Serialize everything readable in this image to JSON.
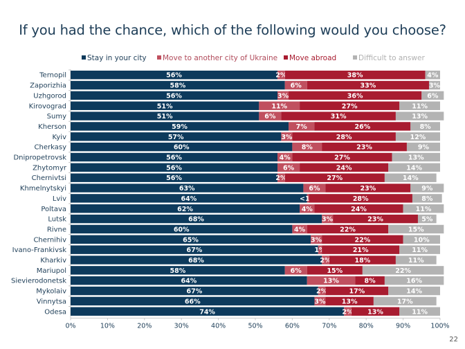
{
  "page_number": "22",
  "chart_data": {
    "type": "bar",
    "orientation": "horizontal",
    "stacked": true,
    "title": "If you had the chance, which of the following would you choose?",
    "xlabel": "",
    "ylabel": "",
    "xlim": [
      0,
      100
    ],
    "x_ticks": [
      "0%",
      "10%",
      "20%",
      "30%",
      "40%",
      "50%",
      "60%",
      "70%",
      "80%",
      "90%",
      "100%"
    ],
    "legend_position": "top",
    "categories": [
      "Ternopil",
      "Zaporizhia",
      "Uzhgorod",
      "Kirovograd",
      "Sumy",
      "Kherson",
      "Kyiv",
      "Cherkasy",
      "Dnipropetrovsk",
      "Zhytomyr",
      "Chernivtsi",
      "Khmelnytskyi",
      "Lviv",
      "Poltava",
      "Lutsk",
      "Rivne",
      "Chernihiv",
      "Ivano-Frankivsk",
      "Kharkiv",
      "Mariupol",
      "Sievierodonetsk",
      "Mykolaiv",
      "Vinnytsa",
      "Odesa"
    ],
    "series": [
      {
        "name": "Stay in your city",
        "color": "#0d3a5c",
        "legend_text_color": "#1d3d57",
        "values": [
          56,
          58,
          56,
          51,
          51,
          59,
          57,
          60,
          56,
          56,
          56,
          63,
          64,
          62,
          68,
          60,
          65,
          67,
          68,
          58,
          64,
          67,
          66,
          74
        ],
        "labels": [
          "56%",
          "58%",
          "56%",
          "51%",
          "51%",
          "59%",
          "57%",
          "60%",
          "56%",
          "56%",
          "56%",
          "63%",
          "64%",
          "62%",
          "68%",
          "60%",
          "65%",
          "67%",
          "68%",
          "58%",
          "64%",
          "67%",
          "66%",
          "74%"
        ]
      },
      {
        "name": "Move to another city of Ukraine",
        "color": "#c0505f",
        "legend_text_color": "#b04a5a",
        "values": [
          2,
          6,
          3,
          11,
          6,
          7,
          3,
          8,
          4,
          6,
          2,
          6,
          0.5,
          4,
          3,
          4,
          3,
          1,
          2,
          6,
          13,
          2,
          3,
          2
        ],
        "labels": [
          "2%",
          "6%",
          "3%",
          "11%",
          "6%",
          "7%",
          "3%",
          "8%",
          "4%",
          "6%",
          "2%",
          "6%",
          "<1%",
          "4%",
          "3%",
          "4%",
          "3%",
          "1%",
          "2%",
          "6%",
          "13%",
          "2%",
          "3%",
          "2%"
        ]
      },
      {
        "name": "Move abroad",
        "color": "#a81c30",
        "legend_text_color": "#a81c30",
        "values": [
          38,
          33,
          36,
          27,
          31,
          26,
          28,
          23,
          27,
          24,
          27,
          23,
          28,
          24,
          23,
          22,
          22,
          21,
          18,
          15,
          8,
          17,
          13,
          13
        ],
        "labels": [
          "38%",
          "33%",
          "36%",
          "27%",
          "31%",
          "26%",
          "28%",
          "23%",
          "27%",
          "24%",
          "27%",
          "23%",
          "28%",
          "24%",
          "23%",
          "22%",
          "22%",
          "21%",
          "18%",
          "15%",
          "8%",
          "17%",
          "13%",
          "13%"
        ]
      },
      {
        "name": "Difficult to answer",
        "color": "#b3b3b3",
        "legend_text_color": "#b0b0b0",
        "values": [
          4,
          3,
          6,
          11,
          13,
          8,
          12,
          9,
          13,
          14,
          14,
          9,
          8,
          11,
          5,
          15,
          10,
          11,
          11,
          22,
          16,
          14,
          17,
          11
        ],
        "labels": [
          "4%",
          "3%",
          "6%",
          "11%",
          "13%",
          "8%",
          "12%",
          "9%",
          "13%",
          "14%",
          "14%",
          "9%",
          "8%",
          "11%",
          "5%",
          "15%",
          "10%",
          "11%",
          "11%",
          "22%",
          "16%",
          "14%",
          "17%",
          "11%"
        ]
      }
    ]
  }
}
